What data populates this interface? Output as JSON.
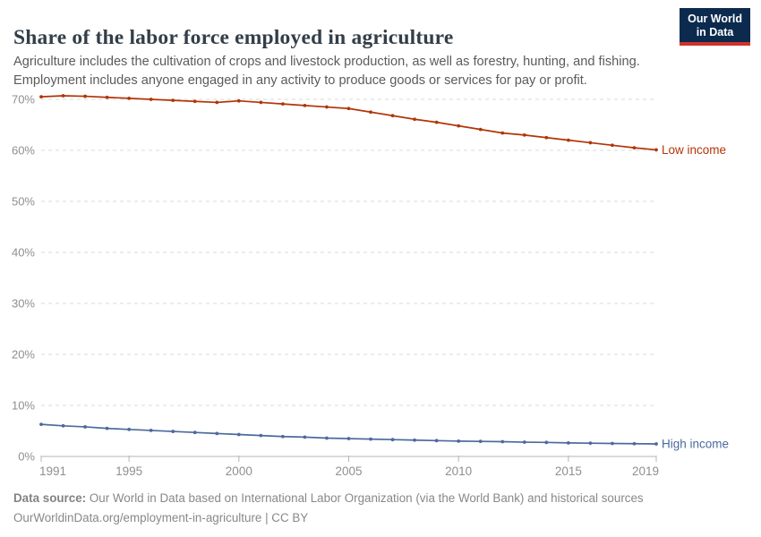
{
  "header": {
    "title": "Share of the labor force employed in agriculture",
    "subtitle": {
      "lines": [
        "Agriculture includes the cultivation of crops and livestock production, as well as forestry, hunting, and fishing.",
        "Employment includes anyone engaged in any activity to produce goods or services for pay or profit."
      ]
    },
    "logo": {
      "line1": "Our World",
      "line2": "in Data",
      "bg_color": "#0b2a4e",
      "accent_color": "#ce332d"
    }
  },
  "chart_data": {
    "type": "line",
    "title": "Share of the labor force employed in agriculture",
    "x": [
      1991,
      1992,
      1993,
      1994,
      1995,
      1996,
      1997,
      1998,
      1999,
      2000,
      2001,
      2002,
      2003,
      2004,
      2005,
      2006,
      2007,
      2008,
      2009,
      2010,
      2011,
      2012,
      2013,
      2014,
      2015,
      2016,
      2017,
      2018,
      2019
    ],
    "series": [
      {
        "name": "Low income",
        "color": "#B13507",
        "values": [
          70.5,
          70.7,
          70.6,
          70.4,
          70.2,
          70.0,
          69.8,
          69.6,
          69.4,
          69.7,
          69.4,
          69.1,
          68.8,
          68.5,
          68.2,
          67.5,
          66.8,
          66.1,
          65.5,
          64.8,
          64.1,
          63.4,
          63.0,
          62.5,
          62.0,
          61.5,
          61.0,
          60.5,
          60.1
        ]
      },
      {
        "name": "High income",
        "color": "#4C6A9C",
        "values": [
          6.3,
          6.0,
          5.8,
          5.5,
          5.3,
          5.1,
          4.9,
          4.7,
          4.5,
          4.3,
          4.1,
          3.9,
          3.8,
          3.6,
          3.5,
          3.4,
          3.3,
          3.2,
          3.1,
          3.0,
          2.95,
          2.9,
          2.8,
          2.75,
          2.65,
          2.6,
          2.55,
          2.5,
          2.45
        ]
      }
    ],
    "xlabel": "",
    "ylabel": "",
    "ylim": [
      0,
      70
    ],
    "yticks": [
      0,
      10,
      20,
      30,
      40,
      50,
      60,
      70
    ],
    "ytick_suffix": "%",
    "xticks": [
      1991,
      1995,
      2000,
      2005,
      2010,
      2015,
      2019
    ],
    "grid": "horizontal-dashed",
    "legend_position": "end-of-line-labels"
  },
  "footer": {
    "source_label": "Data source:",
    "source_text": " Our World in Data based on International Labor Organization (via the World Bank) and historical sources",
    "link": "OurWorldinData.org/employment-in-agriculture",
    "separator": " | ",
    "license": "CC BY"
  }
}
